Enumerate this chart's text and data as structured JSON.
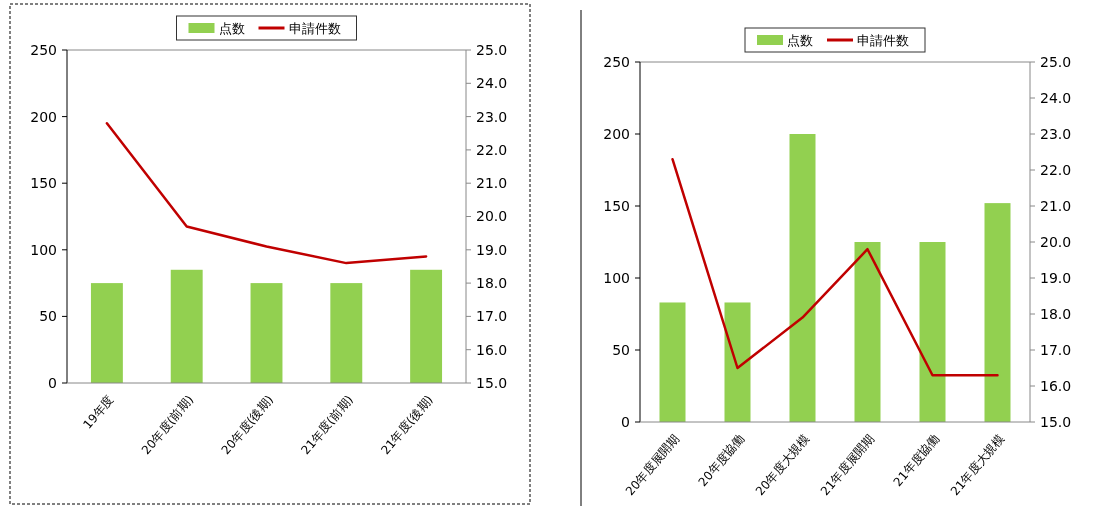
{
  "chart_data": [
    {
      "type": "bar",
      "categories": [
        "19年度",
        "20年度(前期)",
        "20年度(後期)",
        "21年度(前期)",
        "21年度(後期)"
      ],
      "series": [
        {
          "name": "点数",
          "color": "#92d050",
          "values": [
            75,
            85,
            75,
            75,
            85
          ]
        },
        {
          "name": "申請件数",
          "type": "line",
          "axis": "y2",
          "color": "#c00000",
          "values": [
            22.8,
            19.7,
            19.1,
            18.6,
            18.8
          ]
        }
      ],
      "ylim": [
        0,
        250
      ],
      "yticks": [
        0,
        50,
        100,
        150,
        200,
        250
      ],
      "y2lim": [
        15,
        25
      ],
      "y2ticks": [
        {
          "value": 15,
          "label": "15.0"
        },
        {
          "value": 16,
          "label": "16.0"
        },
        {
          "value": 17,
          "label": "17.0"
        },
        {
          "value": 18,
          "label": "18.0"
        },
        {
          "value": 19,
          "label": "19.0"
        },
        {
          "value": 20,
          "label": "20.0"
        },
        {
          "value": 21,
          "label": "21.0"
        },
        {
          "value": 22,
          "label": "22.0"
        },
        {
          "value": 23,
          "label": "23.0"
        },
        {
          "value": 24,
          "label": "24.0"
        },
        {
          "value": 25,
          "label": "25.0"
        }
      ],
      "legend": "top",
      "grid": false
    },
    {
      "type": "bar",
      "categories": [
        "20年度展開期",
        "20年度協働",
        "20年度大規模",
        "21年度展開期",
        "21年度協働",
        "21年度大規模"
      ],
      "series": [
        {
          "name": "点数",
          "color": "#92d050",
          "values": [
            83,
            83,
            200,
            125,
            125,
            152
          ]
        },
        {
          "name": "申請件数",
          "type": "line",
          "axis": "y2",
          "color": "#c00000",
          "values": [
            22.3,
            16.5,
            17.9,
            19.8,
            16.3,
            16.3
          ]
        }
      ],
      "ylim": [
        0,
        250
      ],
      "yticks": [
        0,
        50,
        100,
        150,
        200,
        250
      ],
      "y2lim": [
        15,
        25
      ],
      "y2ticks": [
        {
          "value": 15,
          "label": "15.0"
        },
        {
          "value": 16,
          "label": "16.0"
        },
        {
          "value": 17,
          "label": "17.0"
        },
        {
          "value": 18,
          "label": "18.0"
        },
        {
          "value": 19,
          "label": "19.0"
        },
        {
          "value": 20,
          "label": "20.0"
        },
        {
          "value": 21,
          "label": "21.0"
        },
        {
          "value": 22,
          "label": "22.0"
        },
        {
          "value": 23,
          "label": "23.0"
        },
        {
          "value": 24,
          "label": "24.0"
        },
        {
          "value": 25,
          "label": "25.0"
        }
      ],
      "legend": "top",
      "grid": false
    }
  ]
}
